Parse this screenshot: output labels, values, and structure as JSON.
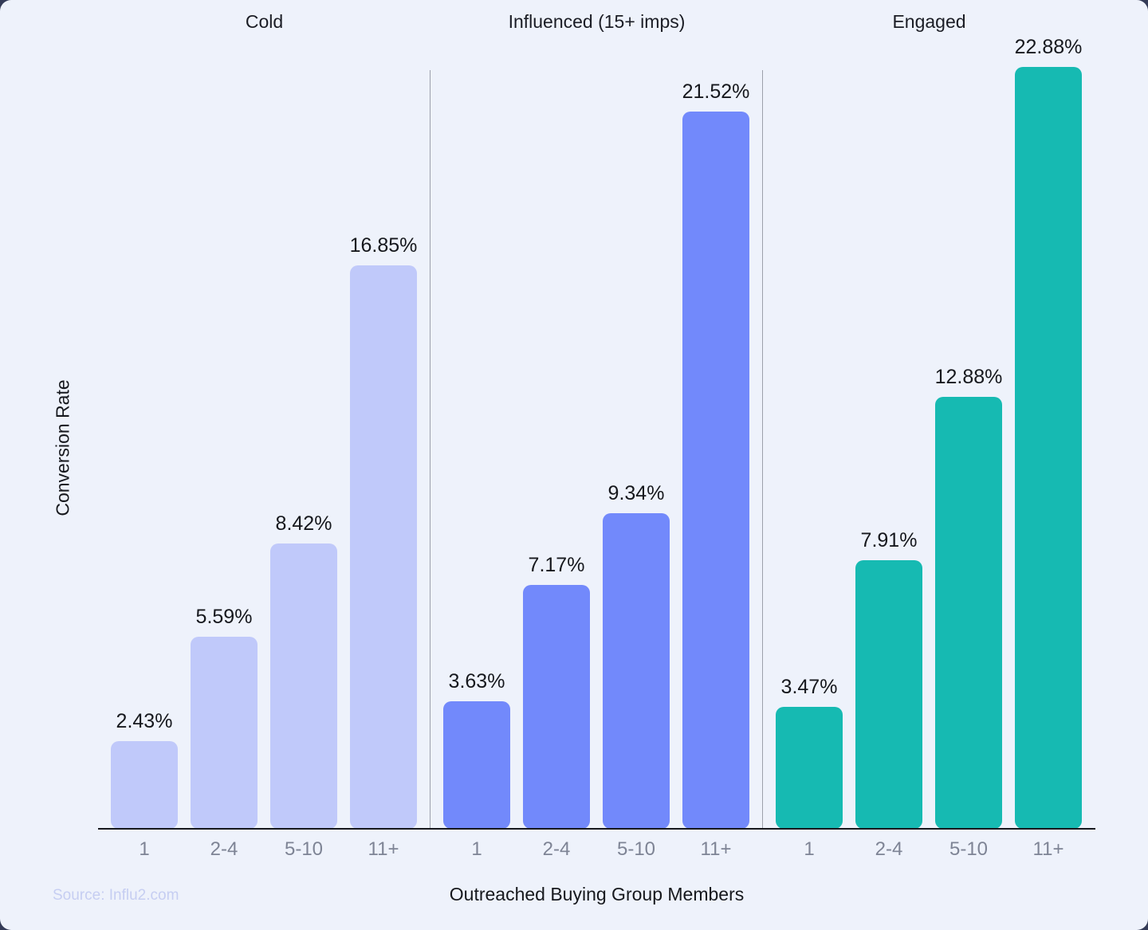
{
  "chart_data": {
    "type": "bar",
    "categories": [
      "1",
      "2-4",
      "5-10",
      "11+"
    ],
    "series": [
      {
        "name": "Cold",
        "values": [
          2.43,
          5.59,
          8.42,
          16.85
        ],
        "value_labels": [
          "2.43%",
          "5.59%",
          "8.42%",
          "16.85%"
        ],
        "color": "#c0c9fa"
      },
      {
        "name": "Influenced (15+ imps)",
        "values": [
          3.63,
          7.17,
          9.34,
          21.52
        ],
        "value_labels": [
          "3.63%",
          "7.17%",
          "9.34%",
          "21.52%"
        ],
        "color": "#7289fb"
      },
      {
        "name": "Engaged",
        "values": [
          3.47,
          7.91,
          12.88,
          22.88
        ],
        "value_labels": [
          "3.47%",
          "7.91%",
          "12.88%",
          "22.88%"
        ],
        "color": "#16bab2"
      }
    ],
    "xlabel": "Outreached Buying Group Members",
    "ylabel": "Conversion Rate",
    "source": "Source: Influ2.com",
    "ylim": [
      0,
      24
    ],
    "grid": false,
    "y_axis_ticks_visible": false,
    "legend_position": "none"
  },
  "colors": {
    "background": "#eef2fb",
    "axis": "#16181d",
    "divider": "#9ca0ab",
    "tick_label": "#7e8495",
    "source_text": "#c6cef2"
  }
}
